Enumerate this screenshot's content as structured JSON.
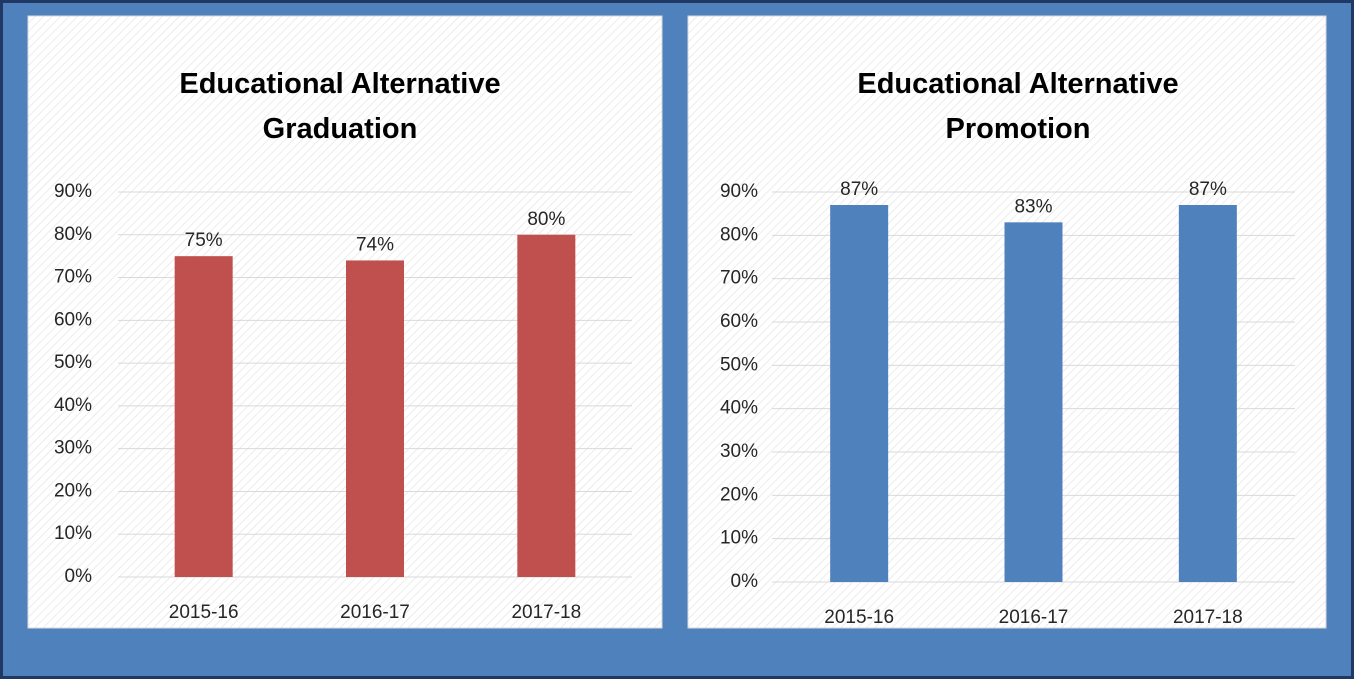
{
  "chart_data": [
    {
      "type": "bar",
      "title": "Educational Alternative Graduation",
      "categories": [
        "2015-16",
        "2016-17",
        "2017-18"
      ],
      "values": [
        75,
        74,
        80
      ],
      "value_labels": [
        "75%",
        "74%",
        "80%"
      ],
      "color": "#c0504d",
      "ylim": [
        0,
        90
      ],
      "yticks": [
        {
          "value": 0,
          "label": "0%"
        },
        {
          "value": 10,
          "label": "10%"
        },
        {
          "value": 20,
          "label": "20%"
        },
        {
          "value": 30,
          "label": "30%"
        },
        {
          "value": 40,
          "label": "40%"
        },
        {
          "value": 50,
          "label": "50%"
        },
        {
          "value": 60,
          "label": "60%"
        },
        {
          "value": 70,
          "label": "70%"
        },
        {
          "value": 80,
          "label": "80%"
        },
        {
          "value": 90,
          "label": "90%"
        }
      ],
      "grid": true
    },
    {
      "type": "bar",
      "title": "Educational Alternative Promotion",
      "categories": [
        "2015-16",
        "2016-17",
        "2017-18"
      ],
      "values": [
        87,
        83,
        87
      ],
      "value_labels": [
        "87%",
        "83%",
        "87%"
      ],
      "color": "#4f81bd",
      "ylim": [
        0,
        90
      ],
      "yticks": [
        {
          "value": 0,
          "label": "0%"
        },
        {
          "value": 10,
          "label": "10%"
        },
        {
          "value": 20,
          "label": "20%"
        },
        {
          "value": 30,
          "label": "30%"
        },
        {
          "value": 40,
          "label": "40%"
        },
        {
          "value": 50,
          "label": "50%"
        },
        {
          "value": 60,
          "label": "60%"
        },
        {
          "value": 70,
          "label": "70%"
        },
        {
          "value": 80,
          "label": "80%"
        },
        {
          "value": 90,
          "label": "90%"
        }
      ],
      "grid": true
    }
  ]
}
